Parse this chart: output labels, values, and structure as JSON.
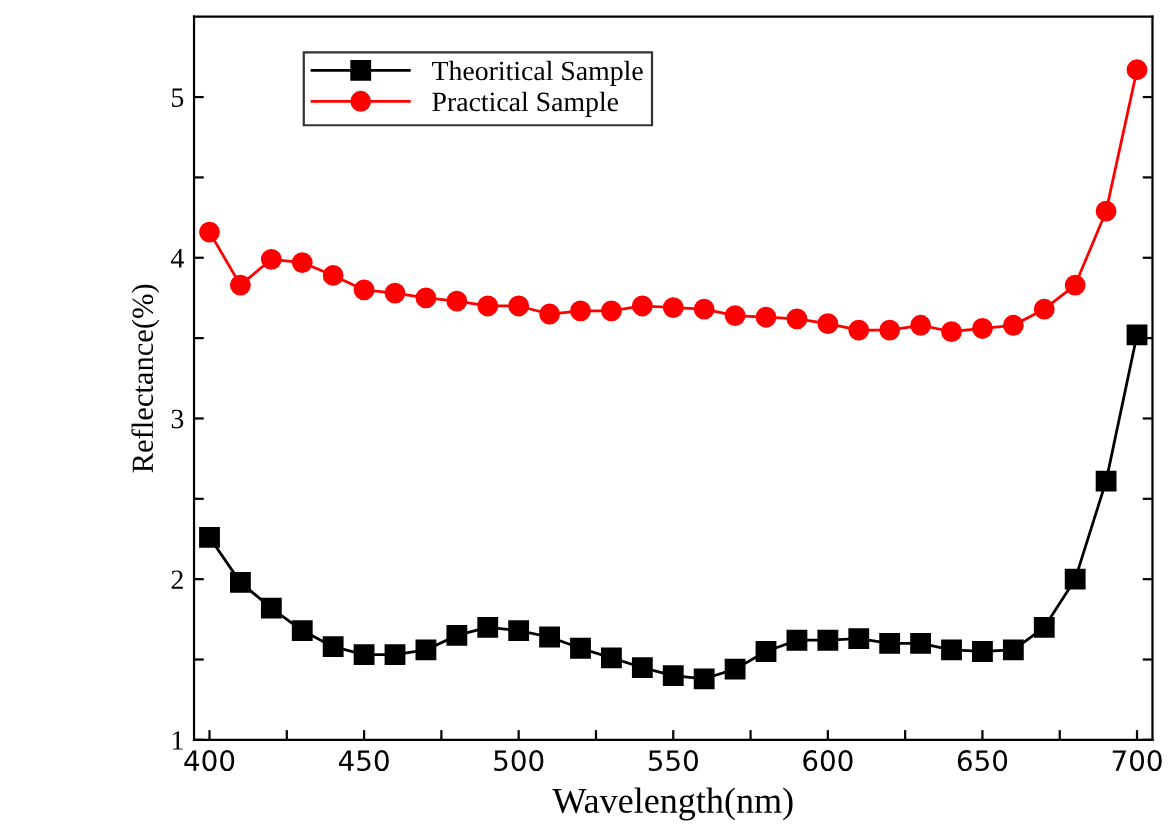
{
  "chart_data": {
    "type": "line",
    "xlabel": "Wavelength(nm)",
    "ylabel": "Reflectance(%)",
    "x": [
      400,
      410,
      420,
      430,
      440,
      450,
      460,
      470,
      480,
      490,
      500,
      510,
      520,
      530,
      540,
      550,
      560,
      570,
      580,
      590,
      600,
      610,
      620,
      630,
      640,
      650,
      660,
      670,
      680,
      690,
      700
    ],
    "series": [
      {
        "name": "Theoritical Sample",
        "color": "#000000",
        "marker": "square",
        "values": [
          2.26,
          1.98,
          1.82,
          1.68,
          1.58,
          1.53,
          1.53,
          1.56,
          1.65,
          1.7,
          1.68,
          1.64,
          1.57,
          1.51,
          1.45,
          1.4,
          1.38,
          1.44,
          1.55,
          1.62,
          1.62,
          1.63,
          1.6,
          1.6,
          1.56,
          1.55,
          1.56,
          1.7,
          2.0,
          2.61,
          3.52
        ]
      },
      {
        "name": "Practical Sample",
        "color": "#ff0000",
        "marker": "circle",
        "values": [
          4.16,
          3.83,
          3.99,
          3.97,
          3.89,
          3.8,
          3.78,
          3.75,
          3.73,
          3.7,
          3.7,
          3.65,
          3.67,
          3.67,
          3.7,
          3.69,
          3.68,
          3.64,
          3.63,
          3.62,
          3.59,
          3.55,
          3.55,
          3.58,
          3.54,
          3.56,
          3.58,
          3.68,
          3.83,
          4.29,
          5.17
        ]
      }
    ],
    "xlim": [
      395,
      705
    ],
    "ylim": [
      1,
      5.5
    ],
    "xticks": [
      400,
      {
        "value": 425,
        "label": null
      },
      450,
      {
        "value": 475,
        "label": null
      },
      500,
      {
        "value": 525,
        "label": null
      },
      550,
      {
        "value": 575,
        "label": null
      },
      600,
      {
        "value": 625,
        "label": null
      },
      650,
      {
        "value": 675,
        "label": null
      },
      700
    ],
    "yticks": [
      1,
      {
        "value": 1.5,
        "label": null
      },
      2,
      {
        "value": 2.5,
        "label": null
      },
      3,
      {
        "value": 3.5,
        "label": null
      },
      4,
      {
        "value": 4.5,
        "label": null
      },
      5
    ],
    "legend": "top left",
    "grid": false,
    "line_style": "solid"
  }
}
